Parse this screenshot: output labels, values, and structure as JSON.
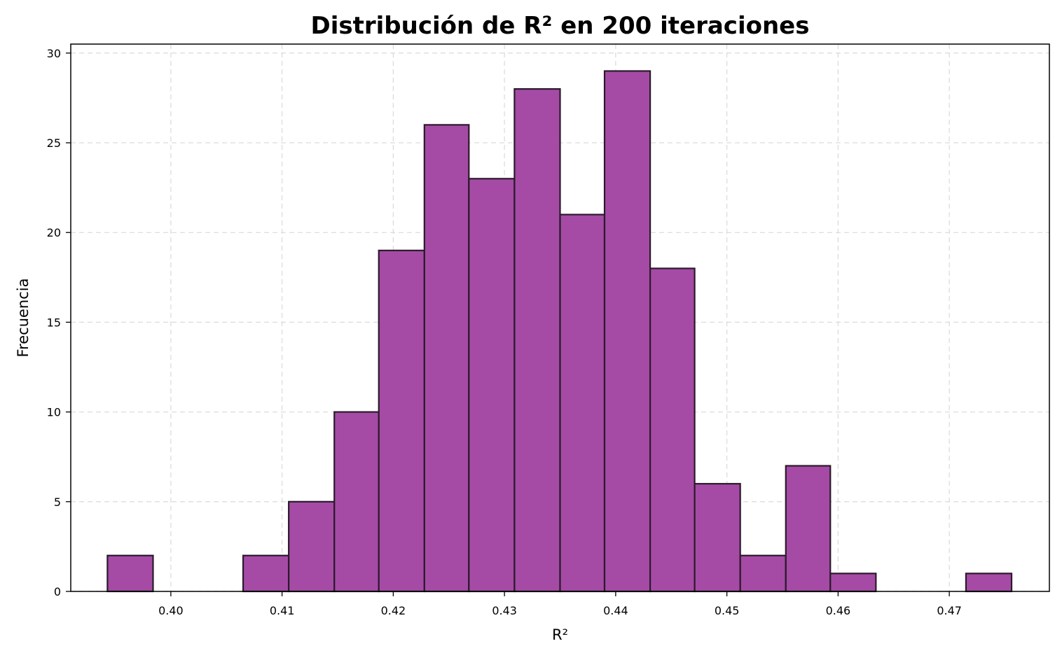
{
  "chart_data": {
    "type": "bar",
    "title": "Distribución de R² en 200 iteraciones",
    "xlabel": "R²",
    "ylabel": "Frecuencia",
    "bin_edges": [
      0.3943,
      0.3984,
      0.4025,
      0.4065,
      0.4106,
      0.4147,
      0.4187,
      0.4228,
      0.4268,
      0.4309,
      0.435,
      0.439,
      0.4431,
      0.4471,
      0.4512,
      0.4553,
      0.4593,
      0.4634,
      0.4674,
      0.4715,
      0.4756
    ],
    "values": [
      2,
      0,
      0,
      2,
      5,
      10,
      19,
      26,
      23,
      28,
      21,
      29,
      18,
      6,
      2,
      7,
      1,
      0,
      0,
      1
    ],
    "xlim": [
      0.391,
      0.479
    ],
    "ylim": [
      0,
      30.5
    ],
    "xticks": [
      0.4,
      0.41,
      0.42,
      0.43,
      0.44,
      0.45,
      0.46,
      0.47
    ],
    "xtick_labels": [
      "0.40",
      "0.41",
      "0.42",
      "0.43",
      "0.44",
      "0.45",
      "0.46",
      "0.47"
    ],
    "yticks": [
      0,
      5,
      10,
      15,
      20,
      25,
      30
    ],
    "ytick_labels": [
      "0",
      "5",
      "10",
      "15",
      "20",
      "25",
      "30"
    ],
    "grid": true,
    "colors": {
      "bar_fill": "#a54ba5",
      "bar_edge": "#2b1a2b",
      "grid": "#dcdcdc"
    }
  }
}
